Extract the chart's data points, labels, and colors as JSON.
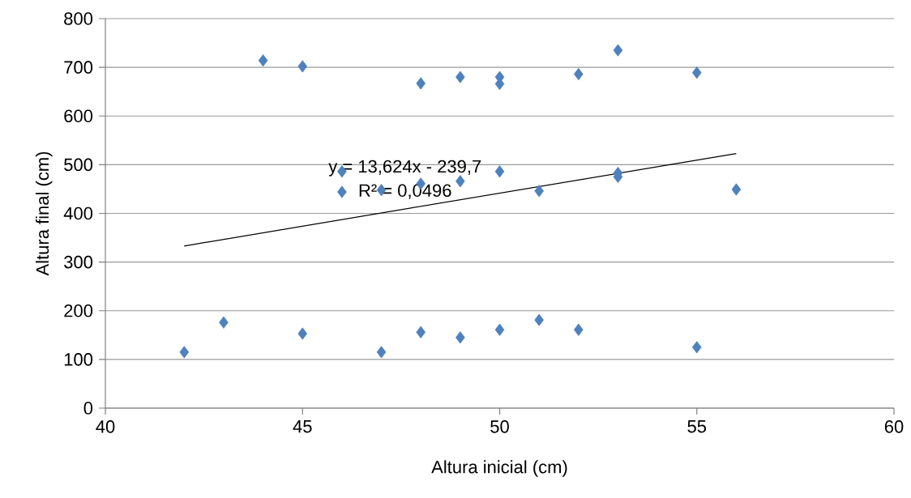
{
  "chart_data": {
    "type": "scatter",
    "xlabel": "Altura inicial (cm)",
    "ylabel": "Altura final (cm)",
    "annotations": [
      "y = 13,624x - 239,7",
      "R² = 0,0496"
    ],
    "series": [
      {
        "color": "#4f81bd",
        "marker": "diamond",
        "x": [
          42,
          43,
          44,
          45,
          45,
          46,
          46,
          47,
          47,
          48,
          48,
          48,
          49,
          49,
          49,
          50,
          50,
          50,
          50,
          51,
          51,
          52,
          52,
          53,
          53,
          53,
          55,
          55,
          56
        ],
        "values": [
          115,
          176,
          714,
          702,
          153,
          486,
          444,
          448,
          115,
          667,
          461,
          156,
          680,
          466,
          145,
          680,
          666,
          486,
          161,
          446,
          181,
          686,
          161,
          735,
          483,
          475,
          689,
          125,
          449
        ]
      },
      {
        "type": "line",
        "color": "#000000",
        "marker": "none",
        "x": [
          42,
          56
        ],
        "values": [
          333,
          523
        ]
      }
    ],
    "xlim": [
      40,
      60
    ],
    "xticks": [
      40,
      45,
      50,
      55,
      60
    ],
    "ylim": [
      0,
      800
    ],
    "yticks": [
      0,
      100,
      200,
      300,
      400,
      500,
      600,
      700,
      800
    ],
    "grid": "y"
  }
}
